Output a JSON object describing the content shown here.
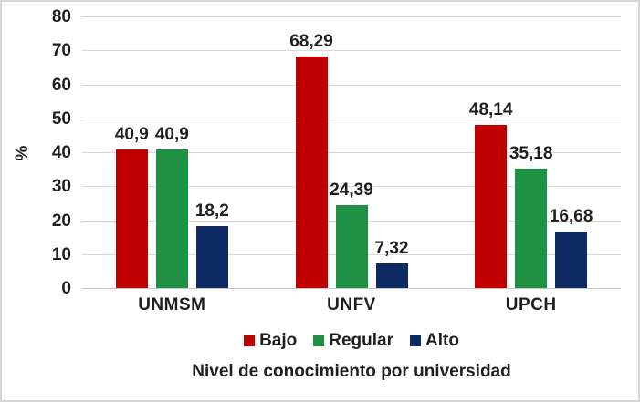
{
  "figure": {
    "background": "#FFFFFF",
    "border_color": "#D6D6D6"
  },
  "chart_data": {
    "type": "bar",
    "title": "Nivel de conocimiento por universidad",
    "ylabel": "%",
    "categories": [
      "UNMSM",
      "UNFV",
      "UPCH"
    ],
    "series": [
      {
        "name": "Bajo",
        "color": "#C00000",
        "values": [
          40.9,
          68.29,
          48.14
        ],
        "labels": [
          "40,9",
          "68,29",
          "48,14"
        ]
      },
      {
        "name": "Regular",
        "color": "#1E9144",
        "values": [
          40.9,
          24.39,
          35.18
        ],
        "labels": [
          "40,9",
          "24,39",
          "35,18"
        ]
      },
      {
        "name": "Alto",
        "color": "#0E2A63",
        "values": [
          18.2,
          7.32,
          16.68
        ],
        "labels": [
          "18,2",
          "7,32",
          "16,68"
        ]
      }
    ],
    "ylim": [
      0,
      80
    ],
    "ytick_step": 10,
    "ytick_labels": [
      "0",
      "10",
      "20",
      "30",
      "40",
      "50",
      "60",
      "70",
      "80"
    ],
    "grid": true,
    "gridline_color": "#D9D9D9",
    "axis_line_color": "#C6C6C6",
    "text_color": "#1F1F1F",
    "legend_position": "bottom"
  }
}
